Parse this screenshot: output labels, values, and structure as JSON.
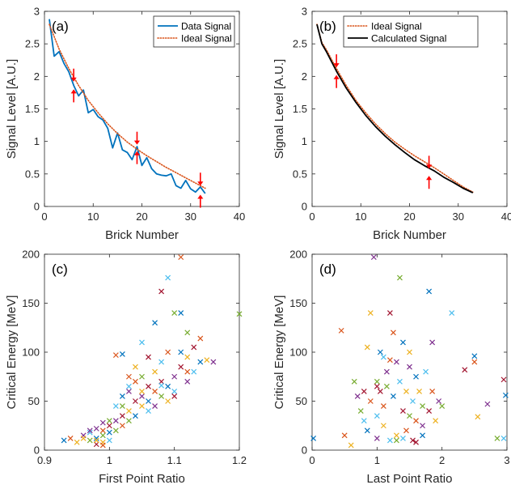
{
  "colors": {
    "data_signal": "#0072bd",
    "ideal_signal": "#d95319",
    "calculated_signal": "#000000",
    "arrow": "#ff0000",
    "scatter": [
      "#0072bd",
      "#d95319",
      "#edb120",
      "#7e2f8e",
      "#77ac30",
      "#4dbeee",
      "#a2142f"
    ]
  },
  "chart_data": [
    {
      "type": "line",
      "panel_label": "(a)",
      "xlabel": "Brick Number",
      "ylabel": "Signal Level [A.U.]",
      "xlim": [
        0,
        40
      ],
      "ylim": [
        0,
        3
      ],
      "xticks": [
        0,
        10,
        20,
        30,
        40
      ],
      "yticks": [
        0,
        0.5,
        1,
        1.5,
        2,
        2.5,
        3
      ],
      "ytick_labels": [
        "0",
        "0.5",
        "1",
        "1.5",
        "2",
        "2.5",
        "3"
      ],
      "legend_position": "top-right",
      "series": [
        {
          "name": "Data Signal",
          "style": "solid",
          "color": "#0072bd",
          "x": [
            1,
            2,
            3,
            4,
            5,
            6,
            7,
            8,
            9,
            10,
            11,
            12,
            13,
            14,
            15,
            16,
            17,
            18,
            19,
            20,
            21,
            22,
            23,
            24,
            25,
            26,
            27,
            28,
            29,
            30,
            31,
            32,
            33
          ],
          "y": [
            2.88,
            2.31,
            2.38,
            2.2,
            2.07,
            1.86,
            1.7,
            1.79,
            1.44,
            1.49,
            1.38,
            1.33,
            1.2,
            0.9,
            1.13,
            0.87,
            0.83,
            0.72,
            0.92,
            0.63,
            0.75,
            0.58,
            0.5,
            0.48,
            0.47,
            0.5,
            0.32,
            0.28,
            0.4,
            0.27,
            0.22,
            0.3,
            0.2
          ]
        },
        {
          "name": "Ideal Signal",
          "style": "dotted",
          "color": "#d95319",
          "x": [
            1,
            3,
            5,
            7,
            9,
            11,
            13,
            15,
            17,
            19,
            21,
            23,
            25,
            27,
            29,
            31,
            33
          ],
          "y": [
            2.8,
            2.42,
            2.12,
            1.86,
            1.63,
            1.44,
            1.27,
            1.12,
            0.99,
            0.88,
            0.78,
            0.69,
            0.6,
            0.52,
            0.44,
            0.36,
            0.28
          ]
        }
      ],
      "arrows": [
        {
          "x": 6,
          "y": 1.92,
          "dir": "down"
        },
        {
          "x": 6,
          "y": 1.8,
          "dir": "up"
        },
        {
          "x": 19,
          "y": 0.95,
          "dir": "down"
        },
        {
          "x": 19,
          "y": 0.85,
          "dir": "up"
        },
        {
          "x": 32,
          "y": 0.32,
          "dir": "down"
        },
        {
          "x": 32,
          "y": 0.18,
          "dir": "up"
        }
      ]
    },
    {
      "type": "line",
      "panel_label": "(b)",
      "xlabel": "Brick Number",
      "ylabel": "Signal Level [A.U.]",
      "xlim": [
        0,
        40
      ],
      "ylim": [
        0,
        3
      ],
      "xticks": [
        0,
        10,
        20,
        30,
        40
      ],
      "yticks": [
        0,
        0.5,
        1,
        1.5,
        2,
        2.5,
        3
      ],
      "ytick_labels": [
        "0",
        "0.5",
        "1",
        "1.5",
        "2",
        "2.5",
        "3"
      ],
      "legend_position": "top-right",
      "series": [
        {
          "name": "Ideal Signal",
          "style": "dotted",
          "color": "#d95319",
          "x": [
            1,
            2,
            3,
            5,
            7,
            9,
            11,
            13,
            15,
            17,
            19,
            21,
            23,
            25,
            27,
            29,
            31,
            33
          ],
          "y": [
            2.8,
            2.52,
            2.4,
            2.12,
            1.86,
            1.63,
            1.44,
            1.27,
            1.12,
            0.99,
            0.88,
            0.78,
            0.69,
            0.6,
            0.5,
            0.4,
            0.3,
            0.22
          ]
        },
        {
          "name": "Calculated Signal",
          "style": "solid",
          "color": "#000000",
          "x": [
            1,
            2,
            3,
            5,
            7,
            9,
            11,
            13,
            15,
            17,
            19,
            21,
            23,
            25,
            27,
            29,
            31,
            33
          ],
          "y": [
            2.8,
            2.5,
            2.37,
            2.08,
            1.82,
            1.6,
            1.4,
            1.23,
            1.08,
            0.95,
            0.83,
            0.72,
            0.63,
            0.55,
            0.45,
            0.37,
            0.28,
            0.21
          ]
        }
      ],
      "arrows": [
        {
          "x": 5,
          "y": 2.14,
          "dir": "down"
        },
        {
          "x": 5,
          "y": 2.02,
          "dir": "up"
        },
        {
          "x": 24,
          "y": 0.58,
          "dir": "down"
        },
        {
          "x": 24,
          "y": 0.47,
          "dir": "up"
        }
      ]
    },
    {
      "type": "scatter",
      "panel_label": "(c)",
      "xlabel": "First Point Ratio",
      "ylabel": "Critical Energy [MeV]",
      "xlim": [
        0.9,
        1.2
      ],
      "ylim": [
        0,
        200
      ],
      "xticks": [
        0.9,
        1,
        1.1,
        1.2
      ],
      "xtick_labels": [
        "0.9",
        "1",
        "1.1",
        "1.2"
      ],
      "yticks": [
        0,
        50,
        100,
        150,
        200
      ],
      "marker": "x",
      "points": [
        [
          0.93,
          10
        ],
        [
          0.94,
          12
        ],
        [
          0.95,
          8
        ],
        [
          0.96,
          15
        ],
        [
          0.97,
          10
        ],
        [
          0.97,
          18
        ],
        [
          0.98,
          6
        ],
        [
          0.98,
          12
        ],
        [
          0.99,
          20
        ],
        [
          0.99,
          8
        ],
        [
          0.98,
          22
        ],
        [
          0.99,
          15
        ],
        [
          1.0,
          10
        ],
        [
          1.0,
          25
        ],
        [
          1.0,
          18
        ],
        [
          0.99,
          5
        ],
        [
          0.98,
          10
        ],
        [
          1.01,
          30
        ],
        [
          1.01,
          20
        ],
        [
          1.01,
          45
        ],
        [
          1.02,
          35
        ],
        [
          1.02,
          55
        ],
        [
          1.02,
          25
        ],
        [
          1.03,
          40
        ],
        [
          1.03,
          60
        ],
        [
          1.03,
          30
        ],
        [
          1.03,
          65
        ],
        [
          1.04,
          50
        ],
        [
          1.04,
          35
        ],
        [
          1.04,
          70
        ],
        [
          1.05,
          45
        ],
        [
          1.05,
          55
        ],
        [
          1.05,
          75
        ],
        [
          1.06,
          40
        ],
        [
          1.06,
          65
        ],
        [
          1.06,
          50
        ],
        [
          1.07,
          60
        ],
        [
          1.07,
          80
        ],
        [
          1.07,
          45
        ],
        [
          1.08,
          55
        ],
        [
          1.08,
          90
        ],
        [
          1.08,
          70
        ],
        [
          1.09,
          65
        ],
        [
          1.09,
          100
        ],
        [
          1.09,
          50
        ],
        [
          1.1,
          75
        ],
        [
          1.1,
          140
        ],
        [
          1.1,
          60
        ],
        [
          1.11,
          85
        ],
        [
          1.11,
          140
        ],
        [
          1.11,
          197
        ],
        [
          1.12,
          95
        ],
        [
          1.12,
          70
        ],
        [
          1.12,
          120
        ],
        [
          1.13,
          80
        ],
        [
          1.13,
          105
        ],
        [
          1.14,
          90
        ],
        [
          1.14,
          114
        ],
        [
          1.15,
          92
        ],
        [
          1.16,
          90
        ],
        [
          1.2,
          139
        ],
        [
          1.09,
          176
        ],
        [
          1.08,
          162
        ],
        [
          1.02,
          98
        ],
        [
          1.01,
          97
        ],
        [
          0.96,
          12
        ],
        [
          0.97,
          20
        ],
        [
          1.0,
          30
        ],
        [
          1.05,
          110
        ],
        [
          1.06,
          95
        ],
        [
          1.07,
          130
        ],
        [
          1.03,
          75
        ],
        [
          1.04,
          85
        ],
        [
          0.99,
          28
        ],
        [
          1.02,
          45
        ],
        [
          1.08,
          66
        ],
        [
          1.1,
          55
        ],
        [
          1.11,
          100
        ],
        [
          1.12,
          80
        ],
        [
          1.05,
          60
        ]
      ]
    },
    {
      "type": "scatter",
      "panel_label": "(d)",
      "xlabel": "Last Point Ratio",
      "ylabel": "Critical Energy [MeV]",
      "xlim": [
        0,
        3
      ],
      "ylim": [
        0,
        200
      ],
      "xticks": [
        0,
        1,
        2,
        3
      ],
      "yticks": [
        0,
        50,
        100,
        150,
        200
      ],
      "marker": "x",
      "points": [
        [
          0.02,
          12
        ],
        [
          0.5,
          15
        ],
        [
          0.6,
          5
        ],
        [
          0.7,
          55
        ],
        [
          0.75,
          40
        ],
        [
          0.8,
          30
        ],
        [
          0.8,
          60
        ],
        [
          0.85,
          20
        ],
        [
          0.9,
          50
        ],
        [
          0.9,
          140
        ],
        [
          0.95,
          197
        ],
        [
          1.0,
          70
        ],
        [
          1.0,
          35
        ],
        [
          1.05,
          60
        ],
        [
          1.05,
          100
        ],
        [
          1.1,
          45
        ],
        [
          1.1,
          25
        ],
        [
          1.15,
          80
        ],
        [
          1.15,
          65
        ],
        [
          1.2,
          10
        ],
        [
          1.2,
          140
        ],
        [
          1.25,
          55
        ],
        [
          1.25,
          120
        ],
        [
          1.3,
          15
        ],
        [
          1.3,
          90
        ],
        [
          1.35,
          176
        ],
        [
          1.35,
          70
        ],
        [
          1.4,
          40
        ],
        [
          1.4,
          110
        ],
        [
          1.45,
          20
        ],
        [
          1.45,
          60
        ],
        [
          1.5,
          85
        ],
        [
          1.5,
          35
        ],
        [
          1.55,
          50
        ],
        [
          1.55,
          10
        ],
        [
          1.6,
          75
        ],
        [
          1.6,
          30
        ],
        [
          1.65,
          60
        ],
        [
          1.7,
          25
        ],
        [
          1.7,
          45
        ],
        [
          1.75,
          80
        ],
        [
          1.8,
          40
        ],
        [
          1.8,
          162
        ],
        [
          1.85,
          60
        ],
        [
          1.9,
          30
        ],
        [
          1.95,
          50
        ],
        [
          2.0,
          45
        ],
        [
          2.15,
          140
        ],
        [
          2.35,
          82
        ],
        [
          2.5,
          96
        ],
        [
          2.5,
          90
        ],
        [
          2.55,
          34
        ],
        [
          2.7,
          47
        ],
        [
          2.85,
          12
        ],
        [
          2.95,
          12
        ],
        [
          2.95,
          72
        ],
        [
          2.98,
          56
        ],
        [
          0.45,
          122
        ],
        [
          0.85,
          105
        ],
        [
          1.0,
          12
        ],
        [
          1.3,
          10
        ],
        [
          1.4,
          12
        ],
        [
          1.6,
          8
        ],
        [
          1.7,
          15
        ],
        [
          1.2,
          92
        ],
        [
          1.5,
          100
        ],
        [
          1.85,
          110
        ],
        [
          0.65,
          70
        ],
        [
          1.1,
          95
        ],
        [
          1.0,
          65
        ]
      ]
    }
  ]
}
